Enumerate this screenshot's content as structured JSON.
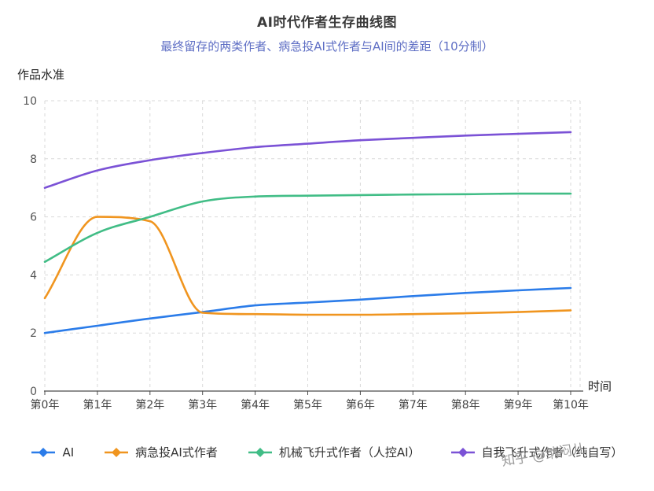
{
  "chart_data": {
    "type": "line",
    "title": "AI时代作者生存曲线图",
    "subtitle": "最终留存的两类作者、病急投AI式作者与AI间的差距（10分制）",
    "subtitle_color": "#5e6ec4",
    "ylabel": "作品水准",
    "xlabel": "时间",
    "ylim": [
      0,
      10
    ],
    "y_ticks": [
      0,
      2,
      4,
      6,
      8,
      10
    ],
    "grid": "dashed",
    "legend_position": "bottom",
    "categories": [
      "第0年",
      "第1年",
      "第2年",
      "第3年",
      "第4年",
      "第5年",
      "第6年",
      "第7年",
      "第8年",
      "第9年",
      "第10年"
    ],
    "series": [
      {
        "name": "AI",
        "color": "#2b7ce9",
        "values": [
          2.0,
          2.25,
          2.5,
          2.72,
          2.95,
          3.05,
          3.15,
          3.27,
          3.38,
          3.47,
          3.55
        ]
      },
      {
        "name": "病急投AI式作者",
        "color": "#f0951f",
        "values": [
          3.2,
          6.0,
          5.85,
          2.7,
          2.65,
          2.63,
          2.63,
          2.65,
          2.68,
          2.72,
          2.78
        ]
      },
      {
        "name": "机械飞升式作者（人控AI）",
        "color": "#41bd86",
        "values": [
          4.45,
          5.45,
          6.0,
          6.53,
          6.7,
          6.73,
          6.75,
          6.77,
          6.78,
          6.8,
          6.8
        ]
      },
      {
        "name": "自我飞升式作者（纯自写）",
        "color": "#7b52d6",
        "values": [
          7.0,
          7.6,
          7.95,
          8.2,
          8.4,
          8.52,
          8.64,
          8.72,
          8.8,
          8.86,
          8.92
        ]
      }
    ]
  },
  "watermark": {
    "text": "知乎 @纳闷儿",
    "color": "#9b9b9b"
  }
}
